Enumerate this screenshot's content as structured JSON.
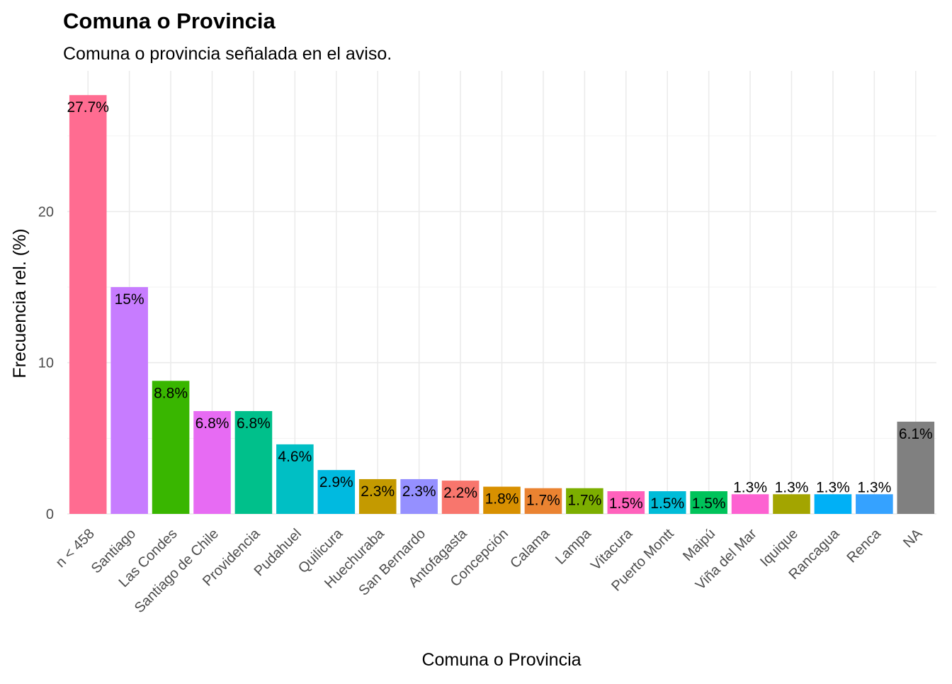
{
  "chart_data": {
    "type": "bar",
    "title": "Comuna o Provincia",
    "subtitle": "Comuna o provincia señalada en el aviso.",
    "xlabel": "Comuna o Provincia",
    "ylabel": "Frecuencia rel. (%)",
    "ylim": [
      0,
      28
    ],
    "yticks": [
      0,
      10,
      20
    ],
    "grid": true,
    "legend": "none",
    "categories": [
      "n < 458",
      "Santiago",
      "Las Condes",
      "Santiago de Chile",
      "Providencia",
      "Pudahuel",
      "Quilicura",
      "Huechuraba",
      "San Bernardo",
      "Antofagasta",
      "Concepción",
      "Calama",
      "Lampa",
      "Vitacura",
      "Puerto Montt",
      "Maipú",
      "Viña del Mar",
      "Iquique",
      "Rancagua",
      "Renca",
      "NA"
    ],
    "values": [
      27.7,
      15.0,
      8.8,
      6.8,
      6.8,
      4.6,
      2.9,
      2.3,
      2.3,
      2.2,
      1.8,
      1.7,
      1.7,
      1.5,
      1.5,
      1.5,
      1.3,
      1.3,
      1.3,
      1.3,
      6.1
    ],
    "labels": [
      "27.7%",
      "15%",
      "8.8%",
      "6.8%",
      "6.8%",
      "4.6%",
      "2.9%",
      "2.3%",
      "2.3%",
      "2.2%",
      "1.8%",
      "1.7%",
      "1.7%",
      "1.5%",
      "1.5%",
      "1.5%",
      "1.3%",
      "1.3%",
      "1.3%",
      "1.3%",
      "6.1%"
    ],
    "colors": [
      "#FF6C91",
      "#C77CFF",
      "#39B600",
      "#E76BF3",
      "#00C08B",
      "#00BFC4",
      "#00BAE0",
      "#C49A00",
      "#9590FF",
      "#F8766D",
      "#D89000",
      "#EA8331",
      "#7CAE00",
      "#FF62BC",
      "#00BCD8",
      "#00C35A",
      "#FD61D1",
      "#A3A500",
      "#00B0F6",
      "#35A2FF",
      "#808080"
    ]
  }
}
